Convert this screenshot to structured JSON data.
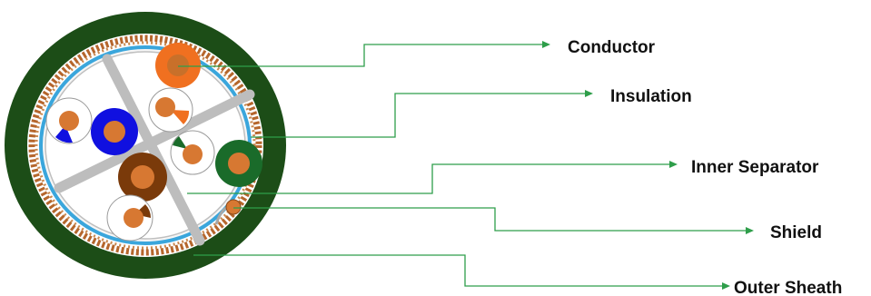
{
  "labels": {
    "conductor": "Conductor",
    "insulation": "Insulation",
    "inner_separator": "Inner Separator",
    "shield": "Shield",
    "outer_sheath": "Outer Sheath"
  },
  "colors": {
    "outer_sheath": "#1c4d17",
    "shield_braid": "#b5662c",
    "foil": "#3aa6dc",
    "separator": "#c0c0c0",
    "copper": "#d77832",
    "leader": "#2e9e4a",
    "pair_orange": "#f07020",
    "pair_blue": "#1010e0",
    "pair_green": "#1a6b2a",
    "pair_brown": "#7a3a0a"
  },
  "icons": {
    "leader_arrow": "arrowhead-right"
  }
}
